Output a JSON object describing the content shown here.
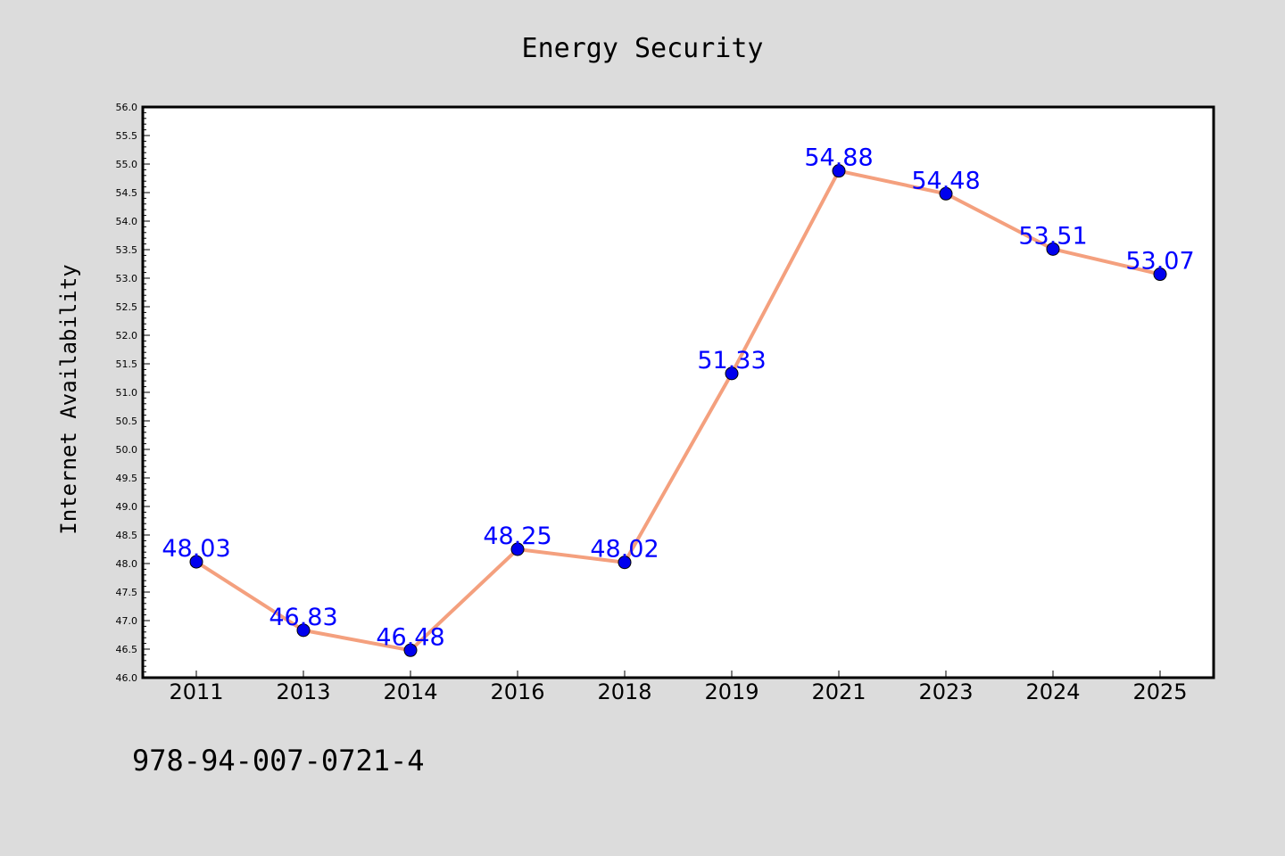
{
  "colors": {
    "background": "#dcdcdc",
    "plot_background": "#ffffff",
    "line": "#f4a07e",
    "marker": "#0000ee",
    "data_label": "#0000ff"
  },
  "footer": {
    "isbn": "978-94-007-0721-4"
  },
  "chart_data": {
    "type": "line",
    "title": "Energy Security",
    "xlabel": "",
    "ylabel": "Internet Availability",
    "categories": [
      "2011",
      "2013",
      "2014",
      "2016",
      "2018",
      "2019",
      "2021",
      "2023",
      "2024",
      "2025"
    ],
    "values": [
      48.03,
      46.83,
      46.48,
      48.25,
      48.02,
      51.33,
      54.88,
      54.48,
      53.51,
      53.07
    ],
    "data_labels": [
      "48.03",
      "46.83",
      "46.48",
      "48.25",
      "48.02",
      "51.33",
      "54.88",
      "54.48",
      "53.51",
      "53.07"
    ],
    "ylim": [
      46.0,
      56.0
    ],
    "yticks": [
      "46.0",
      "46.5",
      "47.0",
      "47.5",
      "48.0",
      "48.5",
      "49.0",
      "49.5",
      "50.0",
      "50.5",
      "51.0",
      "51.5",
      "52.0",
      "52.5",
      "53.0",
      "53.5",
      "54.0",
      "54.5",
      "55.0",
      "55.5",
      "56.0"
    ],
    "grid": false,
    "legend": "none"
  }
}
